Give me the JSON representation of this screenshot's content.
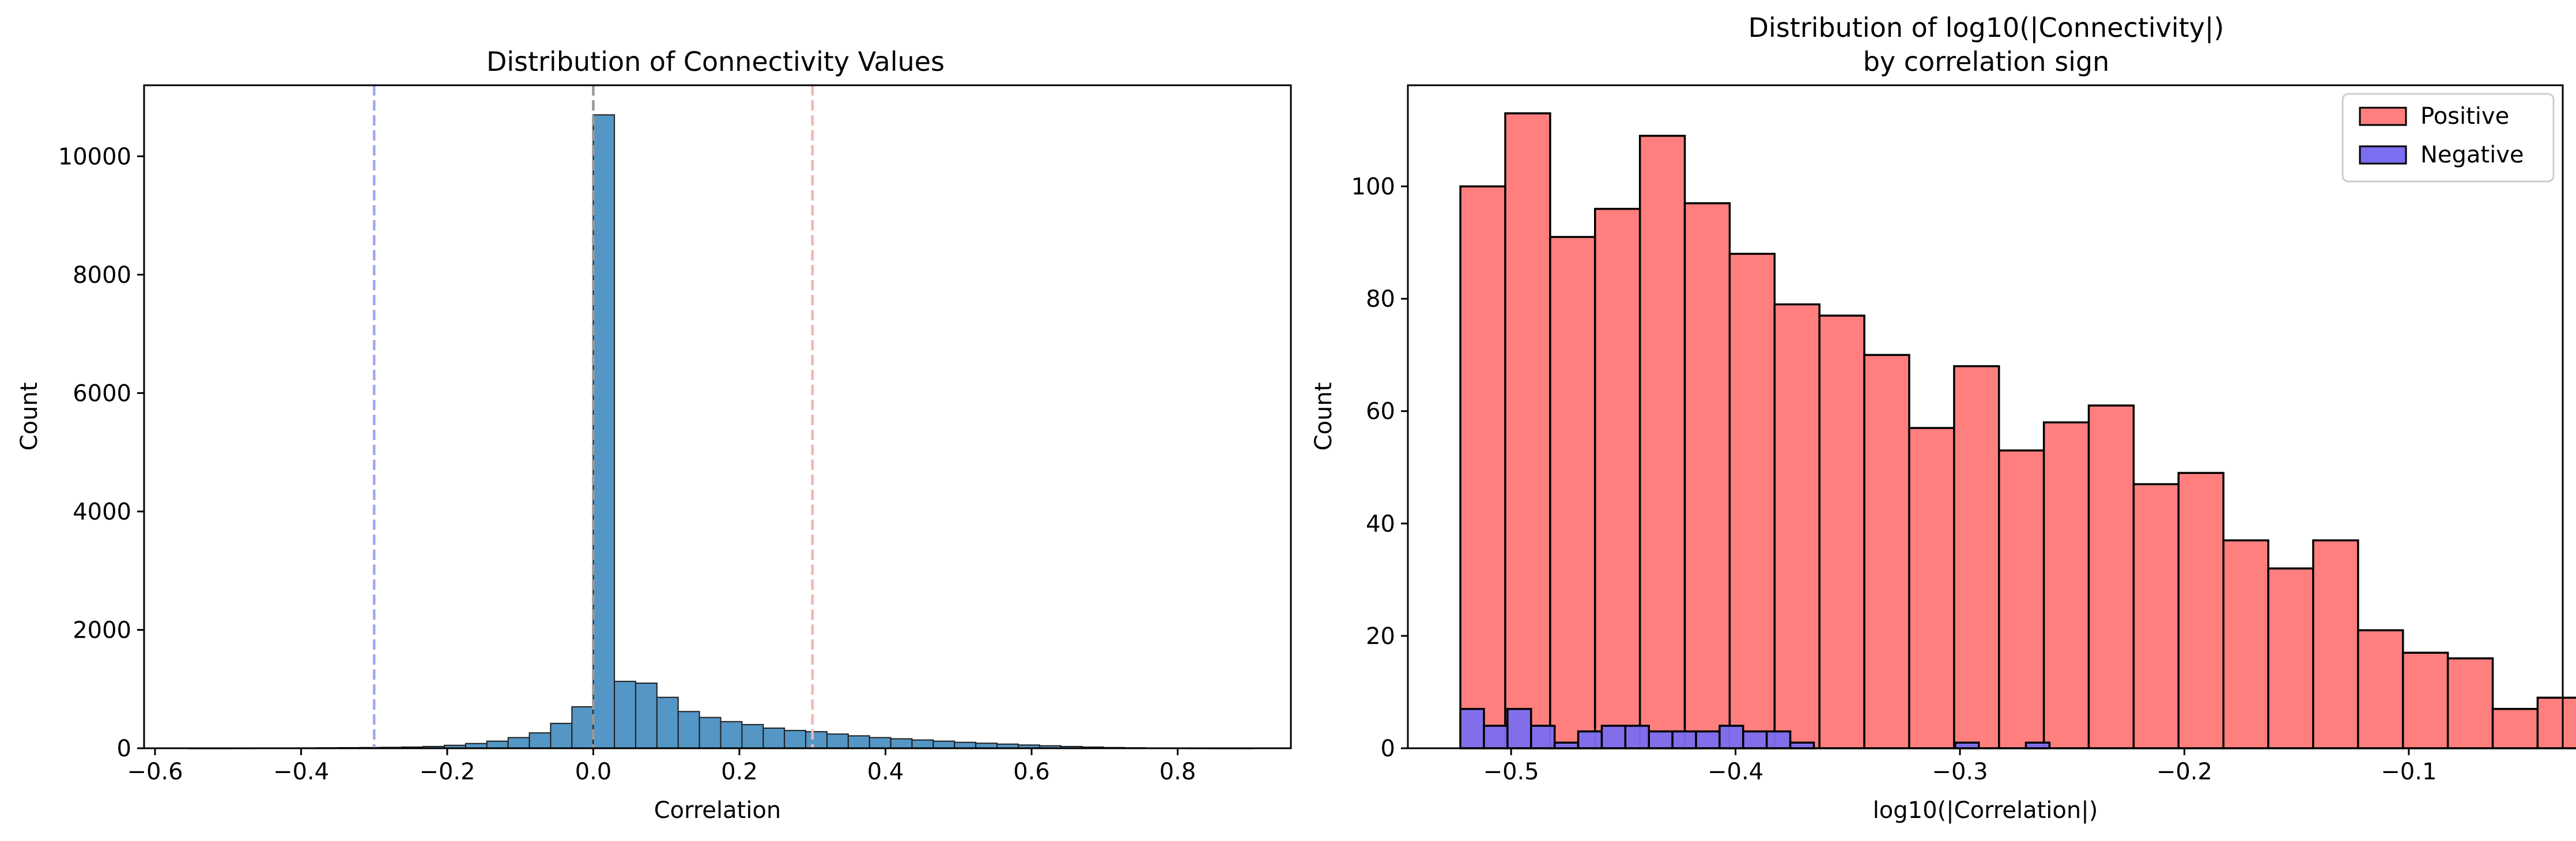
{
  "chart_data": [
    {
      "type": "bar",
      "title": "Distribution of Connectivity Values",
      "xlabel": "Correlation",
      "ylabel": "Count",
      "xlim": [
        -0.615,
        0.955
      ],
      "ylim": [
        0,
        11200
      ],
      "xticks": [
        -0.6,
        -0.4,
        -0.2,
        0.0,
        0.2,
        0.4,
        0.6,
        0.8
      ],
      "xtick_labels": [
        "−0.6",
        "−0.4",
        "−0.2",
        "0.0",
        "0.2",
        "0.4",
        "0.6",
        "0.8"
      ],
      "yticks": [
        0,
        2000,
        4000,
        6000,
        8000,
        10000
      ],
      "ytick_labels": [
        "0",
        "2000",
        "4000",
        "6000",
        "8000",
        "10000"
      ],
      "grid": false,
      "bin_width": 0.0291,
      "bins": [
        {
          "x0": -0.5822,
          "count": 0
        },
        {
          "x0": -0.5531,
          "count": 1
        },
        {
          "x0": -0.524,
          "count": 1
        },
        {
          "x0": -0.4949,
          "count": 2
        },
        {
          "x0": -0.4658,
          "count": 3
        },
        {
          "x0": -0.4367,
          "count": 4
        },
        {
          "x0": -0.4076,
          "count": 6
        },
        {
          "x0": -0.3785,
          "count": 8
        },
        {
          "x0": -0.3494,
          "count": 10
        },
        {
          "x0": -0.3203,
          "count": 12
        },
        {
          "x0": -0.2912,
          "count": 15
        },
        {
          "x0": -0.2621,
          "count": 20
        },
        {
          "x0": -0.233,
          "count": 30
        },
        {
          "x0": -0.2039,
          "count": 50
        },
        {
          "x0": -0.1748,
          "count": 80
        },
        {
          "x0": -0.1457,
          "count": 120
        },
        {
          "x0": -0.1166,
          "count": 180
        },
        {
          "x0": -0.0875,
          "count": 260
        },
        {
          "x0": -0.0584,
          "count": 420
        },
        {
          "x0": -0.0293,
          "count": 700
        },
        {
          "x0": -0.0002,
          "count": 10700
        },
        {
          "x0": 0.0289,
          "count": 1130
        },
        {
          "x0": 0.058,
          "count": 1100
        },
        {
          "x0": 0.0871,
          "count": 860
        },
        {
          "x0": 0.1162,
          "count": 620
        },
        {
          "x0": 0.1453,
          "count": 520
        },
        {
          "x0": 0.1744,
          "count": 450
        },
        {
          "x0": 0.2035,
          "count": 400
        },
        {
          "x0": 0.2326,
          "count": 340
        },
        {
          "x0": 0.2617,
          "count": 300
        },
        {
          "x0": 0.2908,
          "count": 280
        },
        {
          "x0": 0.3199,
          "count": 240
        },
        {
          "x0": 0.349,
          "count": 210
        },
        {
          "x0": 0.3781,
          "count": 180
        },
        {
          "x0": 0.4072,
          "count": 160
        },
        {
          "x0": 0.4363,
          "count": 140
        },
        {
          "x0": 0.4654,
          "count": 120
        },
        {
          "x0": 0.4945,
          "count": 100
        },
        {
          "x0": 0.5236,
          "count": 85
        },
        {
          "x0": 0.5527,
          "count": 70
        },
        {
          "x0": 0.5818,
          "count": 55
        },
        {
          "x0": 0.6109,
          "count": 42
        },
        {
          "x0": 0.64,
          "count": 30
        },
        {
          "x0": 0.6691,
          "count": 20
        },
        {
          "x0": 0.6982,
          "count": 12
        },
        {
          "x0": 0.7273,
          "count": 8
        },
        {
          "x0": 0.7564,
          "count": 5
        },
        {
          "x0": 0.7855,
          "count": 3
        },
        {
          "x0": 0.8146,
          "count": 2
        },
        {
          "x0": 0.8437,
          "count": 1
        },
        {
          "x0": 0.8728,
          "count": 1
        }
      ],
      "bar_color": "#5496c5",
      "edge_color": "#1f1f1f",
      "reference_lines": [
        {
          "x": -0.3,
          "color": "#a0a8f5",
          "style": "dashed"
        },
        {
          "x": 0.0,
          "color": "#999999",
          "style": "dashed"
        },
        {
          "x": 0.3,
          "color": "#f5b4b4",
          "style": "dashed"
        }
      ]
    },
    {
      "type": "bar",
      "title": "Distribution of log10(|Connectivity|)",
      "subtitle": "by correlation sign",
      "xlabel": "log10(|Correlation|)",
      "ylabel": "Count",
      "xlim": [
        -0.546,
        -0.0314
      ],
      "ylim": [
        0,
        118
      ],
      "xticks": [
        -0.5,
        -0.4,
        -0.3,
        -0.2,
        -0.1
      ],
      "xtick_labels": [
        "−0.5",
        "−0.4",
        "−0.3",
        "−0.2",
        "−0.1"
      ],
      "yticks": [
        0,
        20,
        40,
        60,
        80,
        100
      ],
      "ytick_labels": [
        "0",
        "20",
        "40",
        "60",
        "80",
        "100"
      ],
      "grid": false,
      "legend_position": "upper right",
      "bin_width": 0.02,
      "series": [
        {
          "name": "Positive",
          "color": "#ff7f7f",
          "edge_color": "#000000",
          "bins": [
            {
              "x0": -0.5226,
              "count": 100
            },
            {
              "x0": -0.5026,
              "count": 113
            },
            {
              "x0": -0.4826,
              "count": 91
            },
            {
              "x0": -0.4626,
              "count": 96
            },
            {
              "x0": -0.4426,
              "count": 109
            },
            {
              "x0": -0.4226,
              "count": 97
            },
            {
              "x0": -0.4026,
              "count": 88
            },
            {
              "x0": -0.3826,
              "count": 79
            },
            {
              "x0": -0.3626,
              "count": 77
            },
            {
              "x0": -0.3426,
              "count": 70
            },
            {
              "x0": -0.3226,
              "count": 57
            },
            {
              "x0": -0.3026,
              "count": 68
            },
            {
              "x0": -0.2826,
              "count": 53
            },
            {
              "x0": -0.2626,
              "count": 58
            },
            {
              "x0": -0.2426,
              "count": 61
            },
            {
              "x0": -0.2226,
              "count": 47
            },
            {
              "x0": -0.2026,
              "count": 49
            },
            {
              "x0": -0.1826,
              "count": 37
            },
            {
              "x0": -0.1626,
              "count": 32
            },
            {
              "x0": -0.1426,
              "count": 37
            },
            {
              "x0": -0.1226,
              "count": 21
            },
            {
              "x0": -0.1026,
              "count": 17
            },
            {
              "x0": -0.0826,
              "count": 16
            },
            {
              "x0": -0.0626,
              "count": 7
            },
            {
              "x0": -0.0426,
              "count": 9
            }
          ]
        },
        {
          "name": "Negative",
          "color": "#7b6ef0",
          "edge_color": "#000000",
          "bins": [
            {
              "x0": -0.5226,
              "count": 7
            },
            {
              "x0": -0.5121,
              "count": 4
            },
            {
              "x0": -0.5016,
              "count": 7
            },
            {
              "x0": -0.4911,
              "count": 4
            },
            {
              "x0": -0.4806,
              "count": 1
            },
            {
              "x0": -0.4701,
              "count": 3
            },
            {
              "x0": -0.4596,
              "count": 4
            },
            {
              "x0": -0.4491,
              "count": 4
            },
            {
              "x0": -0.4386,
              "count": 3
            },
            {
              "x0": -0.4281,
              "count": 3
            },
            {
              "x0": -0.4176,
              "count": 3
            },
            {
              "x0": -0.4071,
              "count": 4
            },
            {
              "x0": -0.3966,
              "count": 3
            },
            {
              "x0": -0.3861,
              "count": 3
            },
            {
              "x0": -0.3756,
              "count": 1
            },
            {
              "x0": -0.3651,
              "count": 0
            },
            {
              "x0": -0.3546,
              "count": 0
            },
            {
              "x0": -0.3441,
              "count": 0
            },
            {
              "x0": -0.3336,
              "count": 0
            },
            {
              "x0": -0.3231,
              "count": 0
            },
            {
              "x0": -0.3126,
              "count": 0
            },
            {
              "x0": -0.3021,
              "count": 1
            },
            {
              "x0": -0.2916,
              "count": 0
            },
            {
              "x0": -0.2811,
              "count": 0
            },
            {
              "x0": -0.2706,
              "count": 1
            },
            {
              "x0": -0.2601,
              "count": 0
            }
          ]
        }
      ]
    }
  ]
}
